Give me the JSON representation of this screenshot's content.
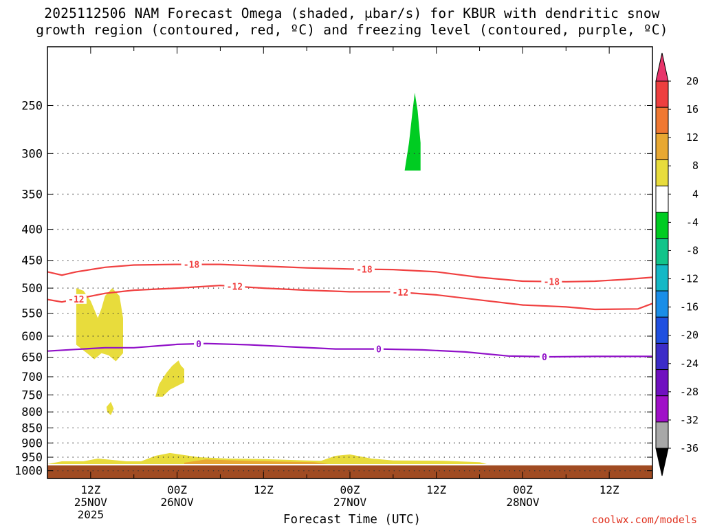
{
  "figure": {
    "title_line1": "2025112506 NAM Forecast Omega (shaded, μbar/s) for KBUR with dendritic snow",
    "title_line2": "growth region (contoured, red, ºC) and freezing level (contoured, purple, ºC)",
    "credit": "coolwx.com/models"
  },
  "chart_data": {
    "type": "time-height cross-section",
    "title": "2025112506 NAM Forecast Omega (shaded, μbar/s) for KBUR with dendritic snow growth region (contoured, red, ºC) and freezing level (contoured, purple, ºC)",
    "xlabel": "Forecast Time (UTC)",
    "ylabel": "",
    "x_range_hours": [
      0,
      84
    ],
    "y_axis": {
      "scale": "log",
      "ylim_hpa": [
        200,
        1030
      ],
      "ticks": [
        250,
        300,
        350,
        400,
        450,
        500,
        550,
        600,
        650,
        700,
        750,
        800,
        850,
        900,
        950,
        1000
      ]
    },
    "x_ticks": [
      {
        "hour": 6,
        "label": "12Z",
        "sub1": "25NOV",
        "sub2": "2025"
      },
      {
        "hour": 18,
        "label": "00Z",
        "sub1": "26NOV",
        "sub2": ""
      },
      {
        "hour": 30,
        "label": "12Z",
        "sub1": "",
        "sub2": ""
      },
      {
        "hour": 42,
        "label": "00Z",
        "sub1": "27NOV",
        "sub2": ""
      },
      {
        "hour": 54,
        "label": "12Z",
        "sub1": "",
        "sub2": ""
      },
      {
        "hour": 66,
        "label": "00Z",
        "sub1": "28NOV",
        "sub2": ""
      },
      {
        "hour": 78,
        "label": "12Z",
        "sub1": "",
        "sub2": ""
      }
    ],
    "colorbar": {
      "labels": [
        "20",
        "16",
        "12",
        "8",
        "4",
        "-4",
        "-8",
        "-12",
        "-16",
        "-20",
        "-24",
        "-28",
        "-32",
        "-36"
      ],
      "colors": [
        "#e8346a",
        "#ee3f3f",
        "#f07832",
        "#e8a832",
        "#e8dc3c",
        "#ffffff",
        "#00cc22",
        "#12c48a",
        "#14b8c6",
        "#1a8ee8",
        "#2050e0",
        "#3c2cc8",
        "#7010c0",
        "#a010c8",
        "#a8a8a8",
        "#000000"
      ]
    },
    "surface_pressure_hpa": 980,
    "contours": [
      {
        "name": "-18C isotherm",
        "color": "#f04040",
        "label": "-18",
        "points": [
          [
            0,
            470
          ],
          [
            2,
            476
          ],
          [
            4,
            470
          ],
          [
            8,
            462
          ],
          [
            12,
            458
          ],
          [
            18,
            457
          ],
          [
            24,
            457
          ],
          [
            30,
            460
          ],
          [
            36,
            463
          ],
          [
            42,
            465
          ],
          [
            48,
            466
          ],
          [
            54,
            470
          ],
          [
            60,
            480
          ],
          [
            66,
            487
          ],
          [
            72,
            488
          ],
          [
            76,
            487
          ],
          [
            80,
            484
          ],
          [
            84,
            480
          ]
        ],
        "label_hours": [
          20,
          44,
          70
        ]
      },
      {
        "name": "-12C isotherm",
        "color": "#f04040",
        "label": "-12",
        "points": [
          [
            0,
            522
          ],
          [
            2,
            527
          ],
          [
            4,
            521
          ],
          [
            8,
            510
          ],
          [
            12,
            504
          ],
          [
            18,
            500
          ],
          [
            24,
            495
          ],
          [
            30,
            500
          ],
          [
            36,
            504
          ],
          [
            42,
            507
          ],
          [
            48,
            507
          ],
          [
            54,
            513
          ],
          [
            60,
            523
          ],
          [
            66,
            533
          ],
          [
            72,
            537
          ],
          [
            76,
            542
          ],
          [
            82,
            541
          ],
          [
            84,
            530
          ]
        ],
        "label_hours": [
          4,
          26,
          49
        ]
      },
      {
        "name": "0C freezing level",
        "color": "#9010c8",
        "label": "0",
        "points": [
          [
            0,
            635
          ],
          [
            4,
            631
          ],
          [
            8,
            627
          ],
          [
            12,
            627
          ],
          [
            18,
            619
          ],
          [
            22,
            617
          ],
          [
            28,
            620
          ],
          [
            34,
            625
          ],
          [
            40,
            630
          ],
          [
            46,
            630
          ],
          [
            52,
            632
          ],
          [
            58,
            637
          ],
          [
            64,
            647
          ],
          [
            70,
            649
          ],
          [
            76,
            648
          ],
          [
            84,
            648
          ]
        ],
        "label_hours": [
          21,
          46,
          69
        ]
      }
    ],
    "shaded_regions": [
      {
        "omega_bin": "4 to 8 μbar/s",
        "color": "#e8dc3c",
        "polygon": [
          [
            4,
            500
          ],
          [
            5,
            505
          ],
          [
            6,
            525
          ],
          [
            7,
            560
          ],
          [
            7.5,
            540
          ],
          [
            8,
            515
          ],
          [
            9,
            500
          ],
          [
            10,
            515
          ],
          [
            10.5,
            560
          ],
          [
            10.5,
            640
          ],
          [
            9.5,
            660
          ],
          [
            8.5,
            645
          ],
          [
            7.5,
            640
          ],
          [
            6.5,
            655
          ],
          [
            5.5,
            640
          ],
          [
            4,
            620
          ]
        ]
      },
      {
        "omega_bin": "4 to 8 μbar/s",
        "color": "#e8dc3c",
        "polygon": [
          [
            15,
            755
          ],
          [
            15.5,
            720
          ],
          [
            16.5,
            690
          ],
          [
            17.3,
            672
          ],
          [
            18.2,
            658
          ],
          [
            18.5,
            670
          ],
          [
            19,
            680
          ],
          [
            19,
            715
          ],
          [
            17,
            735
          ],
          [
            16,
            755
          ]
        ]
      },
      {
        "omega_bin": "4 to 8 μbar/s",
        "color": "#e8dc3c",
        "polygon": [
          [
            8.2,
            785
          ],
          [
            8.8,
            770
          ],
          [
            9.2,
            790
          ],
          [
            8.8,
            810
          ],
          [
            8.3,
            800
          ]
        ]
      },
      {
        "omega_bin": "4 to 8 μbar/s",
        "color": "#e8dc3c",
        "polygon": [
          [
            0,
            975
          ],
          [
            2,
            965
          ],
          [
            5,
            965
          ],
          [
            7,
            955
          ],
          [
            11,
            965
          ],
          [
            13,
            965
          ],
          [
            15,
            945
          ],
          [
            17,
            935
          ],
          [
            21,
            950
          ],
          [
            25,
            955
          ],
          [
            30,
            957
          ],
          [
            36,
            962
          ],
          [
            38,
            963
          ],
          [
            40,
            945
          ],
          [
            42,
            940
          ],
          [
            45,
            955
          ],
          [
            48,
            962
          ],
          [
            55,
            963
          ],
          [
            60,
            968
          ],
          [
            61,
            975
          ]
        ]
      },
      {
        "omega_bin": "8 to 12 μbar/s",
        "color": "#e8a832",
        "polygon": [
          [
            19,
            970
          ],
          [
            22,
            958
          ],
          [
            26,
            962
          ],
          [
            32,
            966
          ],
          [
            37,
            968
          ],
          [
            39,
            975
          ],
          [
            19,
            975
          ]
        ]
      },
      {
        "omega_bin": "-4 to -8 μbar/s",
        "color": "#00cc22",
        "polygon": [
          [
            49.6,
            320
          ],
          [
            50.2,
            288
          ],
          [
            50.7,
            255
          ],
          [
            51,
            238
          ],
          [
            51.4,
            255
          ],
          [
            51.8,
            288
          ],
          [
            51.8,
            320
          ],
          [
            51,
            320
          ]
        ]
      }
    ]
  }
}
